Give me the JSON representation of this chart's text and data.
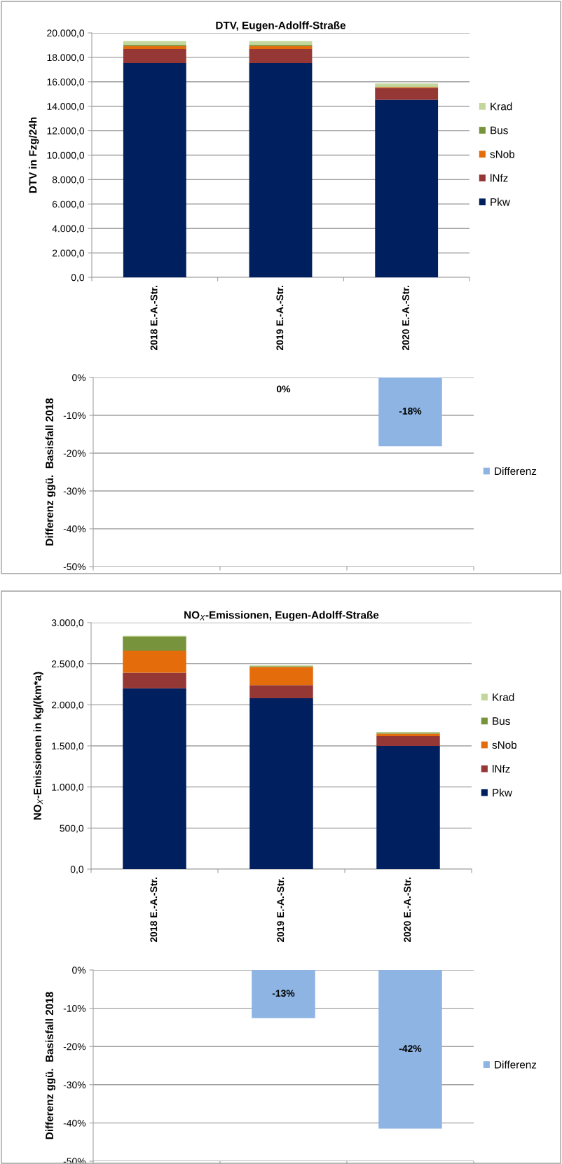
{
  "chart_data": [
    {
      "type": "bar",
      "title": "DTV, Eugen-Adolff-Straße",
      "ylabel": "DTV in Fzg/24h",
      "stacked": true,
      "categories": [
        "2018 E.-A.-Str.",
        "2019 E.-A.-Str.",
        "2020 E.-A.-Str."
      ],
      "series": [
        {
          "name": "Pkw",
          "color": "#001f5f",
          "values": [
            17530,
            17530,
            14530
          ]
        },
        {
          "name": "lNfz",
          "color": "#953735",
          "values": [
            1150,
            1150,
            970
          ]
        },
        {
          "name": "sNob",
          "color": "#e46c0a",
          "values": [
            250,
            250,
            80
          ]
        },
        {
          "name": "Bus",
          "color": "#77933c",
          "values": [
            100,
            100,
            40
          ]
        },
        {
          "name": "Krad",
          "color": "#c3d69b",
          "values": [
            290,
            290,
            240
          ]
        }
      ],
      "ylim": [
        0,
        20000
      ],
      "yticks": [
        {
          "value": 0,
          "label": "0,0"
        },
        {
          "value": 2000,
          "label": "2.000,0"
        },
        {
          "value": 4000,
          "label": "4.000,0"
        },
        {
          "value": 6000,
          "label": "6.000,0"
        },
        {
          "value": 8000,
          "label": "8.000,0"
        },
        {
          "value": 10000,
          "label": "10.000,0"
        },
        {
          "value": 12000,
          "label": "12.000,0"
        },
        {
          "value": 14000,
          "label": "14.000,0"
        },
        {
          "value": 16000,
          "label": "16.000,0"
        },
        {
          "value": 18000,
          "label": "18.000,0"
        },
        {
          "value": 20000,
          "label": "20.000,0"
        }
      ],
      "grid": "y",
      "legend": "right"
    },
    {
      "type": "bar",
      "ylabel": "Differenz ggü.  Basisfall 2018",
      "categories": [
        null,
        null,
        null
      ],
      "series": [
        {
          "name": "Differenz",
          "color": "#8eb4e3",
          "values": [
            0,
            0,
            -18.2
          ],
          "value_labels": [
            null,
            "0%",
            "-18%"
          ]
        }
      ],
      "ylim": [
        -50,
        0
      ],
      "yticks": [
        {
          "value": 0,
          "label": "0%"
        },
        {
          "value": -10,
          "label": "-10%"
        },
        {
          "value": -20,
          "label": "-20%"
        },
        {
          "value": -30,
          "label": "-30%"
        },
        {
          "value": -40,
          "label": "-40%"
        },
        {
          "value": -50,
          "label": "-50%"
        }
      ],
      "grid": "y",
      "legend": "right",
      "tick_labels": "y"
    },
    {
      "type": "bar",
      "title": "NO$_{X}$-Emissionen, Eugen-Adolff-Straße",
      "ylabel": "NO$_{X}$-Emissionen in kg/(km*a)",
      "stacked": true,
      "categories": [
        "2018 E.-A.-Str.",
        "2019 E.-A.-Str.",
        "2020 E.-A.-Str."
      ],
      "series": [
        {
          "name": "Pkw",
          "color": "#001f5f",
          "values": [
            2200,
            2080,
            1500
          ]
        },
        {
          "name": "lNfz",
          "color": "#953735",
          "values": [
            190,
            160,
            120
          ]
        },
        {
          "name": "sNob",
          "color": "#e46c0a",
          "values": [
            270,
            220,
            30
          ]
        },
        {
          "name": "Bus",
          "color": "#77933c",
          "values": [
            170,
            10,
            10
          ]
        },
        {
          "name": "Krad",
          "color": "#c3d69b",
          "values": [
            10,
            10,
            10
          ]
        }
      ],
      "ylim": [
        0,
        3000
      ],
      "yticks": [
        {
          "value": 0,
          "label": "0,0"
        },
        {
          "value": 500,
          "label": "500,0"
        },
        {
          "value": 1000,
          "label": "1.000,0"
        },
        {
          "value": 1500,
          "label": "1.500,0"
        },
        {
          "value": 2000,
          "label": "2.000,0"
        },
        {
          "value": 2500,
          "label": "2.500,0"
        },
        {
          "value": 3000,
          "label": "3.000,0"
        }
      ],
      "grid": "y",
      "legend": "right"
    },
    {
      "type": "bar",
      "ylabel": "Differenz ggü.  Basisfall 2018",
      "categories": [
        null,
        null,
        null
      ],
      "series": [
        {
          "name": "Differenz",
          "color": "#8eb4e3",
          "values": [
            0,
            -12.6,
            -41.5
          ],
          "value_labels": [
            null,
            "-13%",
            "-42%"
          ]
        }
      ],
      "ylim": [
        -50,
        0
      ],
      "yticks": [
        {
          "value": 0,
          "label": "0%"
        },
        {
          "value": -10,
          "label": "-10%"
        },
        {
          "value": -20,
          "label": "-20%"
        },
        {
          "value": -30,
          "label": "-30%"
        },
        {
          "value": -40,
          "label": "-40%"
        },
        {
          "value": -50,
          "label": "-50%"
        }
      ],
      "grid": "y",
      "legend": "right",
      "tick_labels": "y"
    }
  ]
}
